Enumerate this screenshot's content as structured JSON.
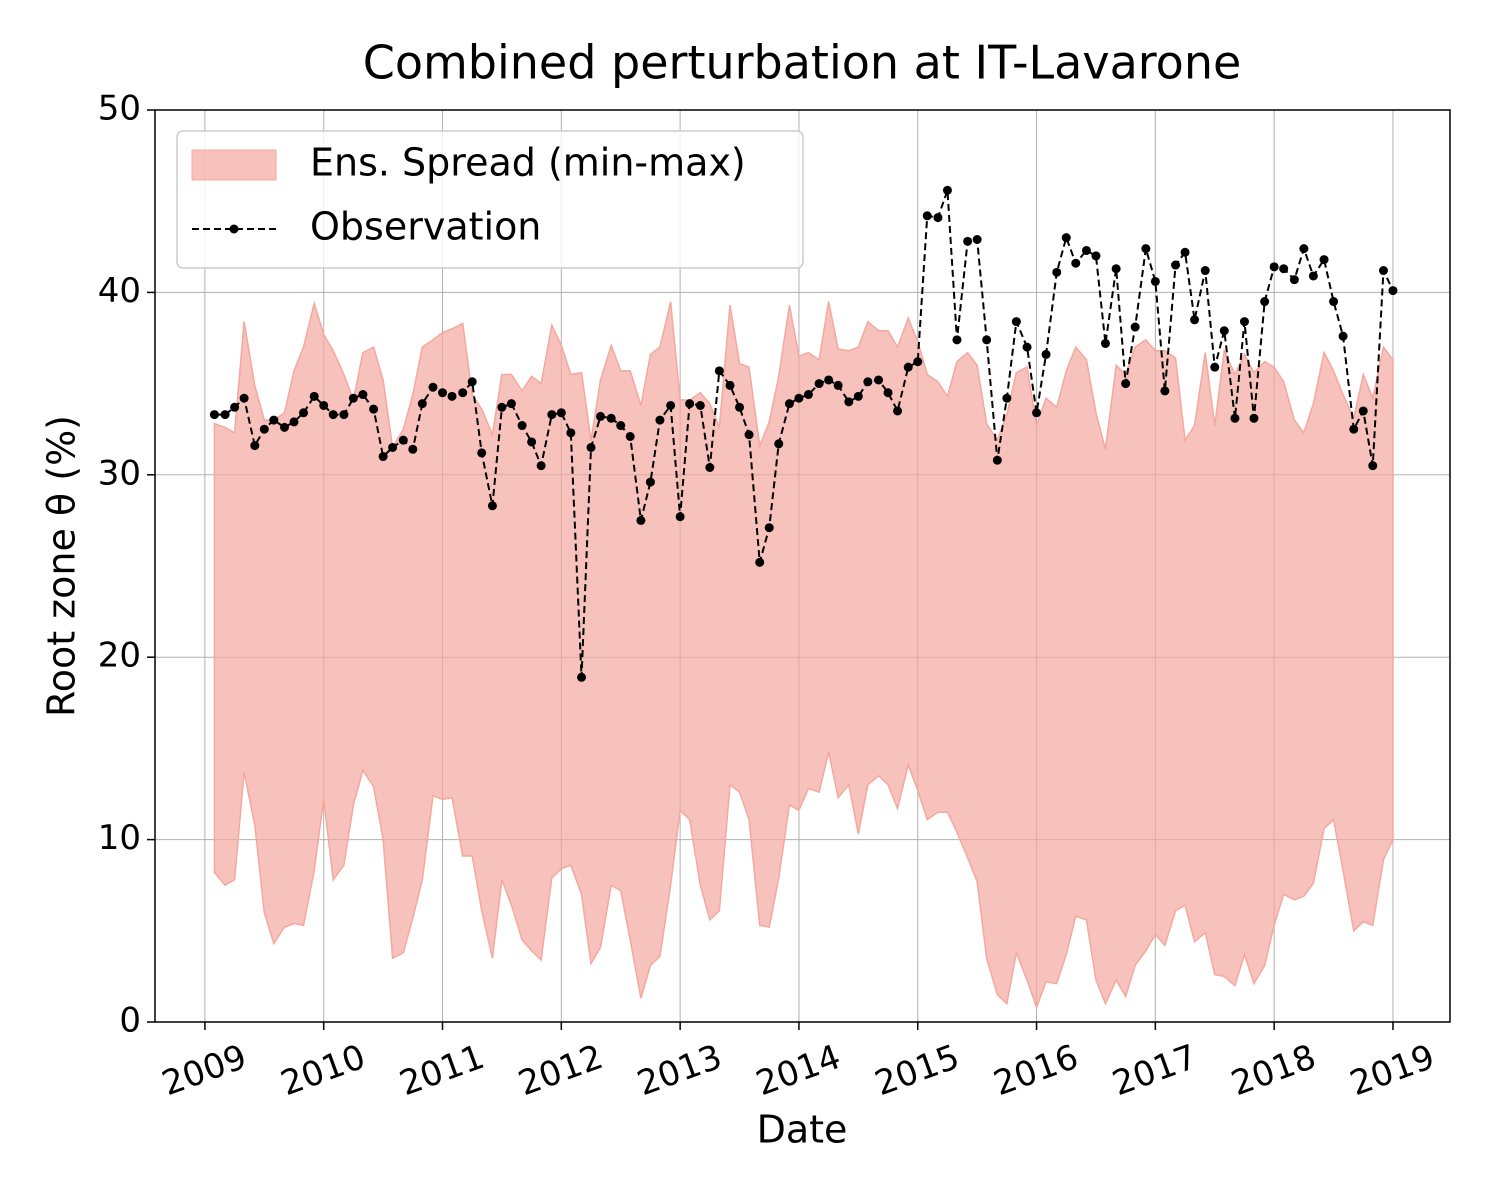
{
  "chart_data": {
    "type": "line",
    "title": "Combined perturbation at IT-Lavarone",
    "x_label": "Date",
    "y_label": "Root zone θ  (%)",
    "xlim": [
      2008.58,
      2019.48
    ],
    "xticks": [
      2009,
      2010,
      2011,
      2012,
      2013,
      2014,
      2015,
      2016,
      2017,
      2018,
      2019
    ],
    "ylim": [
      0,
      50
    ],
    "yticks": [
      0,
      10,
      20,
      30,
      40,
      50
    ],
    "grid": true,
    "legend_loc": "upper left",
    "x": [
      2009.08,
      2009.17,
      2009.25,
      2009.33,
      2009.42,
      2009.5,
      2009.58,
      2009.67,
      2009.75,
      2009.83,
      2009.92,
      2010,
      2010.08,
      2010.17,
      2010.25,
      2010.33,
      2010.42,
      2010.5,
      2010.58,
      2010.67,
      2010.75,
      2010.83,
      2010.92,
      2011,
      2011.08,
      2011.17,
      2011.25,
      2011.33,
      2011.42,
      2011.5,
      2011.58,
      2011.67,
      2011.75,
      2011.83,
      2011.92,
      2012,
      2012.08,
      2012.17,
      2012.25,
      2012.33,
      2012.42,
      2012.5,
      2012.58,
      2012.67,
      2012.75,
      2012.83,
      2012.92,
      2013,
      2013.08,
      2013.17,
      2013.25,
      2013.33,
      2013.42,
      2013.5,
      2013.58,
      2013.67,
      2013.75,
      2013.83,
      2013.92,
      2014,
      2014.08,
      2014.17,
      2014.25,
      2014.33,
      2014.42,
      2014.5,
      2014.58,
      2014.67,
      2014.75,
      2014.83,
      2014.92,
      2015,
      2015.08,
      2015.17,
      2015.25,
      2015.33,
      2015.42,
      2015.5,
      2015.58,
      2015.67,
      2015.75,
      2015.83,
      2015.92,
      2016,
      2016.08,
      2016.17,
      2016.25,
      2016.33,
      2016.42,
      2016.5,
      2016.58,
      2016.67,
      2016.75,
      2016.83,
      2016.92,
      2017,
      2017.08,
      2017.17,
      2017.25,
      2017.33,
      2017.42,
      2017.5,
      2017.58,
      2017.67,
      2017.75,
      2017.83,
      2017.92,
      2018,
      2018.08,
      2018.17,
      2018.25,
      2018.33,
      2018.42,
      2018.5,
      2018.58,
      2018.67,
      2018.75,
      2018.83,
      2018.92,
      2019
    ],
    "band": {
      "name": "Ens. Spread (min-max)",
      "color": "#f4a89e",
      "upper": [
        32.8,
        32.6,
        32.3,
        38.4,
        34.9,
        33.0,
        33.0,
        33.4,
        35.7,
        37.0,
        39.4,
        37.7,
        36.8,
        35.5,
        34.1,
        36.7,
        37.0,
        35.2,
        31.5,
        32.5,
        34.4,
        37.0,
        37.4,
        37.8,
        38.0,
        38.3,
        34.4,
        33.6,
        32.2,
        35.5,
        35.5,
        34.6,
        35.4,
        35.0,
        38.2,
        37.1,
        35.5,
        35.6,
        31.9,
        35.2,
        37.1,
        35.7,
        35.7,
        33.8,
        36.6,
        37.0,
        39.5,
        34.1,
        34.1,
        34.5,
        33.9,
        32.6,
        39.3,
        36.1,
        35.9,
        31.6,
        32.9,
        35.4,
        39.3,
        36.5,
        36.7,
        36.3,
        39.5,
        36.9,
        36.8,
        37.0,
        38.4,
        37.9,
        37.9,
        37.0,
        38.6,
        37.3,
        35.5,
        35.1,
        34.3,
        36.2,
        36.7,
        36.0,
        32.8,
        31.9,
        33.3,
        35.6,
        35.9,
        32.7,
        34.2,
        33.7,
        35.7,
        37.0,
        36.3,
        33.4,
        31.4,
        36.0,
        35.5,
        37.0,
        37.4,
        36.8,
        36.8,
        36.4,
        31.9,
        32.7,
        36.7,
        32.7,
        36.8,
        35.5,
        36.6,
        35.6,
        36.2,
        35.9,
        35.1,
        33.0,
        32.3,
        33.9,
        36.7,
        35.7,
        34.4,
        33.1,
        35.5,
        34.2,
        37.0,
        36.3
      ],
      "lower": [
        8.2,
        7.5,
        7.8,
        13.7,
        10.8,
        6.0,
        4.3,
        5.2,
        5.4,
        5.3,
        8.3,
        12.2,
        7.8,
        8.6,
        11.9,
        13.8,
        12.9,
        10.0,
        3.5,
        3.8,
        5.7,
        7.8,
        12.4,
        12.2,
        12.3,
        9.1,
        9.1,
        6.1,
        3.5,
        7.8,
        6.4,
        4.5,
        3.9,
        3.4,
        7.9,
        8.4,
        8.6,
        7.0,
        3.2,
        4.1,
        7.5,
        7.2,
        4.5,
        1.3,
        3.1,
        3.6,
        7.5,
        11.6,
        11.1,
        7.5,
        5.6,
        6.1,
        13.0,
        12.6,
        11.1,
        5.3,
        5.2,
        7.9,
        11.9,
        11.6,
        12.8,
        12.6,
        14.8,
        12.3,
        13.0,
        10.3,
        13.0,
        13.5,
        13.0,
        11.7,
        14.1,
        12.7,
        11.1,
        11.5,
        11.5,
        10.4,
        9.0,
        7.7,
        3.5,
        1.5,
        1.0,
        3.8,
        2.3,
        0.8,
        2.2,
        2.1,
        3.7,
        5.8,
        5.6,
        2.3,
        1.0,
        2.3,
        1.4,
        3.1,
        3.9,
        4.8,
        4.2,
        6.1,
        6.4,
        4.4,
        4.9,
        2.6,
        2.5,
        2.0,
        3.7,
        2.1,
        3.1,
        5.3,
        7.0,
        6.7,
        6.9,
        7.6,
        10.6,
        11.1,
        8.3,
        5.0,
        5.5,
        5.3,
        8.9,
        10.0
      ]
    },
    "series": [
      {
        "name": "Observation",
        "color": "#000000",
        "values": [
          33.3,
          33.3,
          33.7,
          34.2,
          31.6,
          32.5,
          33.0,
          32.6,
          32.9,
          33.4,
          34.3,
          33.8,
          33.3,
          33.3,
          34.2,
          34.4,
          33.6,
          31.0,
          31.5,
          31.9,
          31.4,
          33.9,
          34.8,
          34.5,
          34.3,
          34.5,
          35.1,
          31.2,
          28.3,
          33.7,
          33.9,
          32.7,
          31.8,
          30.5,
          33.3,
          33.4,
          32.3,
          18.9,
          31.5,
          33.2,
          33.1,
          32.7,
          32.1,
          27.5,
          29.6,
          33.0,
          33.8,
          27.7,
          33.9,
          33.8,
          30.4,
          35.7,
          34.9,
          33.7,
          32.2,
          25.2,
          27.1,
          31.7,
          33.9,
          34.2,
          34.4,
          35.0,
          35.2,
          34.9,
          34.0,
          34.3,
          35.1,
          35.2,
          34.5,
          33.5,
          35.9,
          36.2,
          44.2,
          44.1,
          45.6,
          37.4,
          42.8,
          42.9,
          37.4,
          30.8,
          34.2,
          38.4,
          37.0,
          33.4,
          36.6,
          41.1,
          43.0,
          41.6,
          42.3,
          42.0,
          37.2,
          41.3,
          35.0,
          38.1,
          42.4,
          40.6,
          34.6,
          41.5,
          42.2,
          38.5,
          41.2,
          35.9,
          37.9,
          33.1,
          38.4,
          33.1,
          39.5,
          41.4,
          41.3,
          40.7,
          42.4,
          40.9,
          41.8,
          39.5,
          37.6,
          32.5,
          33.5,
          30.5,
          41.2,
          40.1
        ]
      }
    ]
  }
}
